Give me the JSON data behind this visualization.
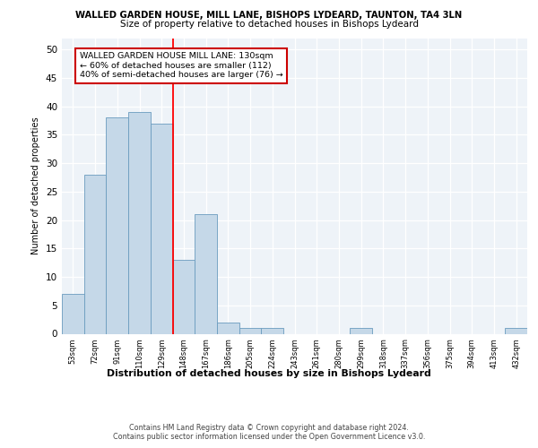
{
  "title1": "WALLED GARDEN HOUSE, MILL LANE, BISHOPS LYDEARD, TAUNTON, TA4 3LN",
  "title2": "Size of property relative to detached houses in Bishops Lydeard",
  "xlabel": "Distribution of detached houses by size in Bishops Lydeard",
  "ylabel": "Number of detached properties",
  "categories": [
    "53sqm",
    "72sqm",
    "91sqm",
    "110sqm",
    "129sqm",
    "148sqm",
    "167sqm",
    "186sqm",
    "205sqm",
    "224sqm",
    "243sqm",
    "261sqm",
    "280sqm",
    "299sqm",
    "318sqm",
    "337sqm",
    "356sqm",
    "375sqm",
    "394sqm",
    "413sqm",
    "432sqm"
  ],
  "values": [
    7,
    28,
    38,
    39,
    37,
    13,
    21,
    2,
    1,
    1,
    0,
    0,
    0,
    1,
    0,
    0,
    0,
    0,
    0,
    0,
    1
  ],
  "bar_color": "#c5d8e8",
  "bar_edge_color": "#6a9cbf",
  "red_line_x": 4.5,
  "annotation_text": "WALLED GARDEN HOUSE MILL LANE: 130sqm\n← 60% of detached houses are smaller (112)\n40% of semi-detached houses are larger (76) →",
  "annotation_box_color": "#ffffff",
  "annotation_box_edge": "#cc0000",
  "ylim": [
    0,
    52
  ],
  "yticks": [
    0,
    5,
    10,
    15,
    20,
    25,
    30,
    35,
    40,
    45,
    50
  ],
  "background_color": "#eef3f8",
  "grid_color": "#ffffff",
  "footer1": "Contains HM Land Registry data © Crown copyright and database right 2024.",
  "footer2": "Contains public sector information licensed under the Open Government Licence v3.0."
}
